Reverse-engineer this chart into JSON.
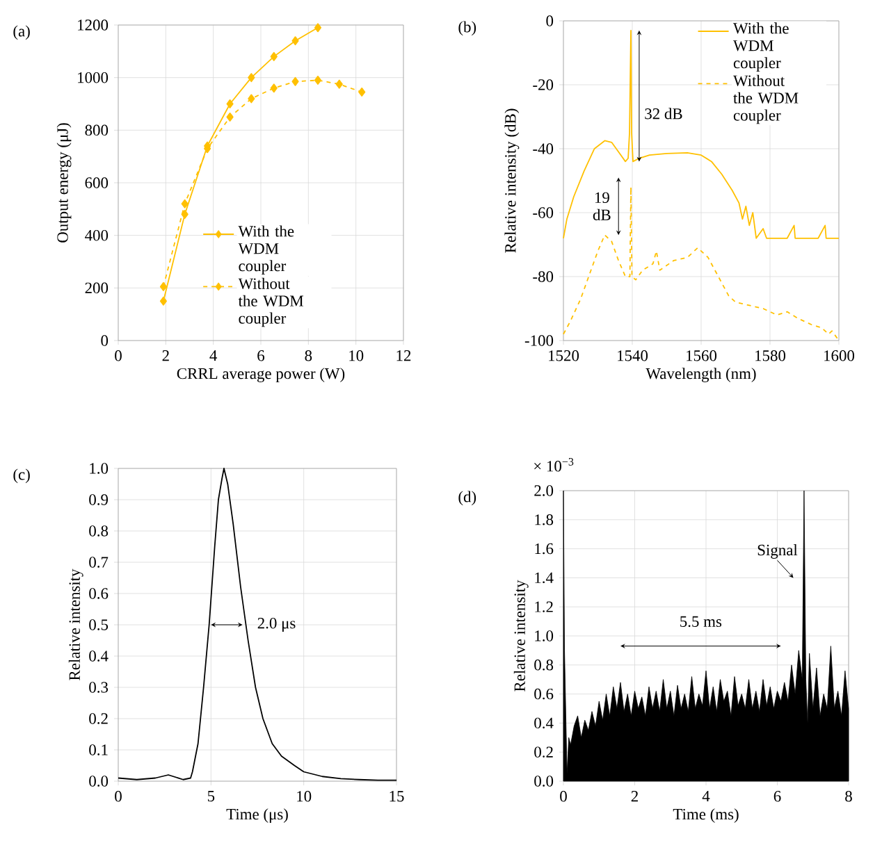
{
  "chart_data": [
    {
      "type": "line",
      "title": "(a)",
      "xlabel": "CRRL average power (W)",
      "ylabel": "Output energy (μJ)",
      "xlim": [
        0,
        12
      ],
      "xticks": [
        0,
        2,
        4,
        6,
        8,
        10,
        12
      ],
      "ylim": [
        0,
        1200
      ],
      "yticks": [
        0,
        200,
        400,
        600,
        800,
        1000,
        1200
      ],
      "grid": true,
      "legend": "bottom right",
      "marker": "diamond",
      "series": [
        {
          "name": "With the WDM coupler",
          "color": "#ffc000",
          "line_style": "solid",
          "x": [
            1.9,
            2.8,
            3.75,
            4.7,
            5.6,
            6.55,
            7.45,
            8.4
          ],
          "values": [
            150,
            480,
            740,
            900,
            1000,
            1080,
            1140,
            1190
          ]
        },
        {
          "name": "Without the WDM coupler",
          "color": "#ffc000",
          "line_style": "dashed",
          "x": [
            1.9,
            2.8,
            3.75,
            4.7,
            5.6,
            6.55,
            7.45,
            8.4,
            9.3,
            10.25
          ],
          "values": [
            205,
            520,
            730,
            850,
            920,
            960,
            985,
            990,
            975,
            945
          ]
        }
      ]
    },
    {
      "type": "line",
      "title": "(b)",
      "xlabel": "Wavelength (nm)",
      "ylabel": "Relative intensity (dB)",
      "xlim": [
        1520,
        1600
      ],
      "xticks": [
        1520,
        1540,
        1560,
        1580,
        1600
      ],
      "ylim": [
        -100,
        0
      ],
      "yticks": [
        -100,
        -80,
        -60,
        -40,
        -20,
        0
      ],
      "grid": true,
      "legend": "top right",
      "annotations": [
        "32 dB",
        "19 dB"
      ],
      "series": [
        {
          "name": "With the WDM coupler",
          "color": "#ffc000",
          "line_style": "solid",
          "x": [
            1520,
            1521,
            1523,
            1526,
            1529,
            1532,
            1534,
            1536,
            1538,
            1538.8,
            1539.2,
            1539.6,
            1539.8,
            1540.2,
            1542,
            1545,
            1550,
            1556,
            1560,
            1563,
            1566,
            1569,
            1571,
            1572,
            1573,
            1574,
            1575,
            1576,
            1578,
            1579,
            1582,
            1585,
            1587,
            1587.3,
            1594,
            1596,
            1596.3,
            1600
          ],
          "values": [
            -68,
            -62,
            -55,
            -47,
            -40,
            -37.5,
            -38,
            -41,
            -44,
            -43,
            -35,
            -3,
            -35,
            -44,
            -43,
            -42,
            -41.5,
            -41.3,
            -42,
            -44,
            -48,
            -53,
            -57,
            -62,
            -58,
            -64,
            -60,
            -68,
            -65,
            -68,
            -68,
            -68,
            -64,
            -68,
            -68,
            -64,
            -68,
            -68
          ]
        },
        {
          "name": "Without the WDM coupler",
          "color": "#ffc000",
          "line_style": "dashed",
          "x": [
            1520,
            1522,
            1525,
            1528,
            1530,
            1532,
            1534,
            1536,
            1538,
            1539.3,
            1539.6,
            1539.9,
            1541,
            1543,
            1546,
            1547,
            1548,
            1552,
            1556,
            1559,
            1562,
            1565,
            1568,
            1570,
            1574,
            1578,
            1582,
            1585,
            1588,
            1592,
            1595,
            1597,
            1598,
            1600
          ],
          "values": [
            -98,
            -94,
            -87,
            -78,
            -72,
            -67,
            -69,
            -75,
            -80,
            -80,
            -52,
            -80,
            -81,
            -78,
            -76,
            -72,
            -78,
            -75,
            -74,
            -71,
            -74,
            -80,
            -86,
            -88,
            -89,
            -90,
            -92,
            -91,
            -93,
            -95,
            -96,
            -98,
            -97,
            -100
          ]
        }
      ]
    },
    {
      "type": "line",
      "title": "(c)",
      "xlabel": "Time (μs)",
      "ylabel": "Relative intensity",
      "xlim": [
        0,
        15
      ],
      "xticks": [
        0,
        5,
        10,
        15
      ],
      "ylim": [
        0,
        1
      ],
      "yticks": [
        {
          "value": 0,
          "label": "0.0"
        },
        0.1,
        0.2,
        0.3,
        0.4,
        0.5,
        0.6,
        0.7,
        0.8,
        0.9,
        {
          "value": 1,
          "label": "1.0"
        }
      ],
      "grid": true,
      "annotations": [
        "2.0 μs"
      ],
      "series": [
        {
          "color": "#000000",
          "x": [
            0,
            1,
            2,
            2.7,
            3.5,
            3.9,
            4.0,
            4.3,
            4.6,
            4.9,
            5.2,
            5.4,
            5.6,
            5.7,
            5.9,
            6.2,
            6.6,
            7.0,
            7.4,
            7.8,
            8.3,
            8.8,
            9.5,
            10,
            11,
            12,
            13,
            14,
            15
          ],
          "values": [
            0.01,
            0.005,
            0.01,
            0.02,
            0.005,
            0.01,
            0.03,
            0.12,
            0.3,
            0.5,
            0.75,
            0.9,
            0.97,
            1.0,
            0.95,
            0.82,
            0.62,
            0.45,
            0.3,
            0.2,
            0.12,
            0.08,
            0.05,
            0.03,
            0.015,
            0.008,
            0.005,
            0.003,
            0.003
          ]
        }
      ]
    },
    {
      "type": "area",
      "title": "(d)",
      "xlabel": "Time (ms)",
      "ylabel": "Relative intensity",
      "xlim": [
        0,
        8
      ],
      "xticks": [
        0,
        2,
        4,
        6,
        8
      ],
      "ylim": [
        0,
        2
      ],
      "yticks": [
        {
          "value": 0,
          "label": "0.0"
        },
        0.2,
        0.4,
        0.6,
        0.8,
        {
          "value": 1,
          "label": "1.0"
        },
        1.2,
        1.4,
        1.6,
        1.8,
        {
          "value": 2,
          "label": "2.0"
        }
      ],
      "grid": true,
      "annotations": [
        "× 10$^{−3}$",
        "5.5 ms",
        "Signal"
      ],
      "series": [
        {
          "color": "#000000",
          "x": [
            0,
            0.03,
            0.08,
            0.1,
            0.15,
            0.2,
            0.3,
            0.4,
            0.5,
            0.6,
            0.7,
            0.8,
            0.9,
            1.0,
            1.1,
            1.2,
            1.3,
            1.4,
            1.5,
            1.6,
            1.7,
            1.8,
            1.9,
            2.0,
            2.1,
            2.2,
            2.3,
            2.4,
            2.5,
            2.6,
            2.7,
            2.8,
            2.9,
            3.0,
            3.1,
            3.2,
            3.3,
            3.4,
            3.5,
            3.6,
            3.7,
            3.8,
            3.9,
            4.0,
            4.1,
            4.2,
            4.3,
            4.4,
            4.5,
            4.6,
            4.7,
            4.8,
            4.9,
            5.0,
            5.1,
            5.2,
            5.3,
            5.4,
            5.5,
            5.6,
            5.7,
            5.8,
            5.9,
            6.0,
            6.1,
            6.2,
            6.3,
            6.4,
            6.5,
            6.6,
            6.7,
            6.75,
            6.8,
            6.85,
            6.9,
            7.0,
            7.1,
            7.2,
            7.3,
            7.4,
            7.5,
            7.6,
            7.7,
            7.8,
            7.9,
            8.0
          ],
          "values": [
            2.0,
            0.9,
            0.3,
            0.05,
            0.3,
            0.25,
            0.38,
            0.45,
            0.3,
            0.42,
            0.35,
            0.48,
            0.38,
            0.55,
            0.42,
            0.6,
            0.45,
            0.65,
            0.5,
            0.68,
            0.48,
            0.6,
            0.45,
            0.62,
            0.5,
            0.58,
            0.45,
            0.65,
            0.5,
            0.62,
            0.48,
            0.7,
            0.5,
            0.62,
            0.45,
            0.66,
            0.5,
            0.6,
            0.48,
            0.72,
            0.5,
            0.6,
            0.52,
            0.76,
            0.5,
            0.65,
            0.48,
            0.7,
            0.55,
            0.62,
            0.45,
            0.72,
            0.52,
            0.6,
            0.5,
            0.7,
            0.5,
            0.62,
            0.48,
            0.7,
            0.52,
            0.65,
            0.5,
            0.62,
            0.55,
            0.68,
            0.55,
            0.8,
            0.6,
            0.9,
            0.7,
            2.0,
            0.7,
            0.4,
            0.88,
            0.5,
            0.78,
            0.45,
            0.6,
            0.5,
            0.93,
            0.5,
            0.62,
            0.45,
            0.76,
            0.5
          ]
        }
      ]
    }
  ]
}
